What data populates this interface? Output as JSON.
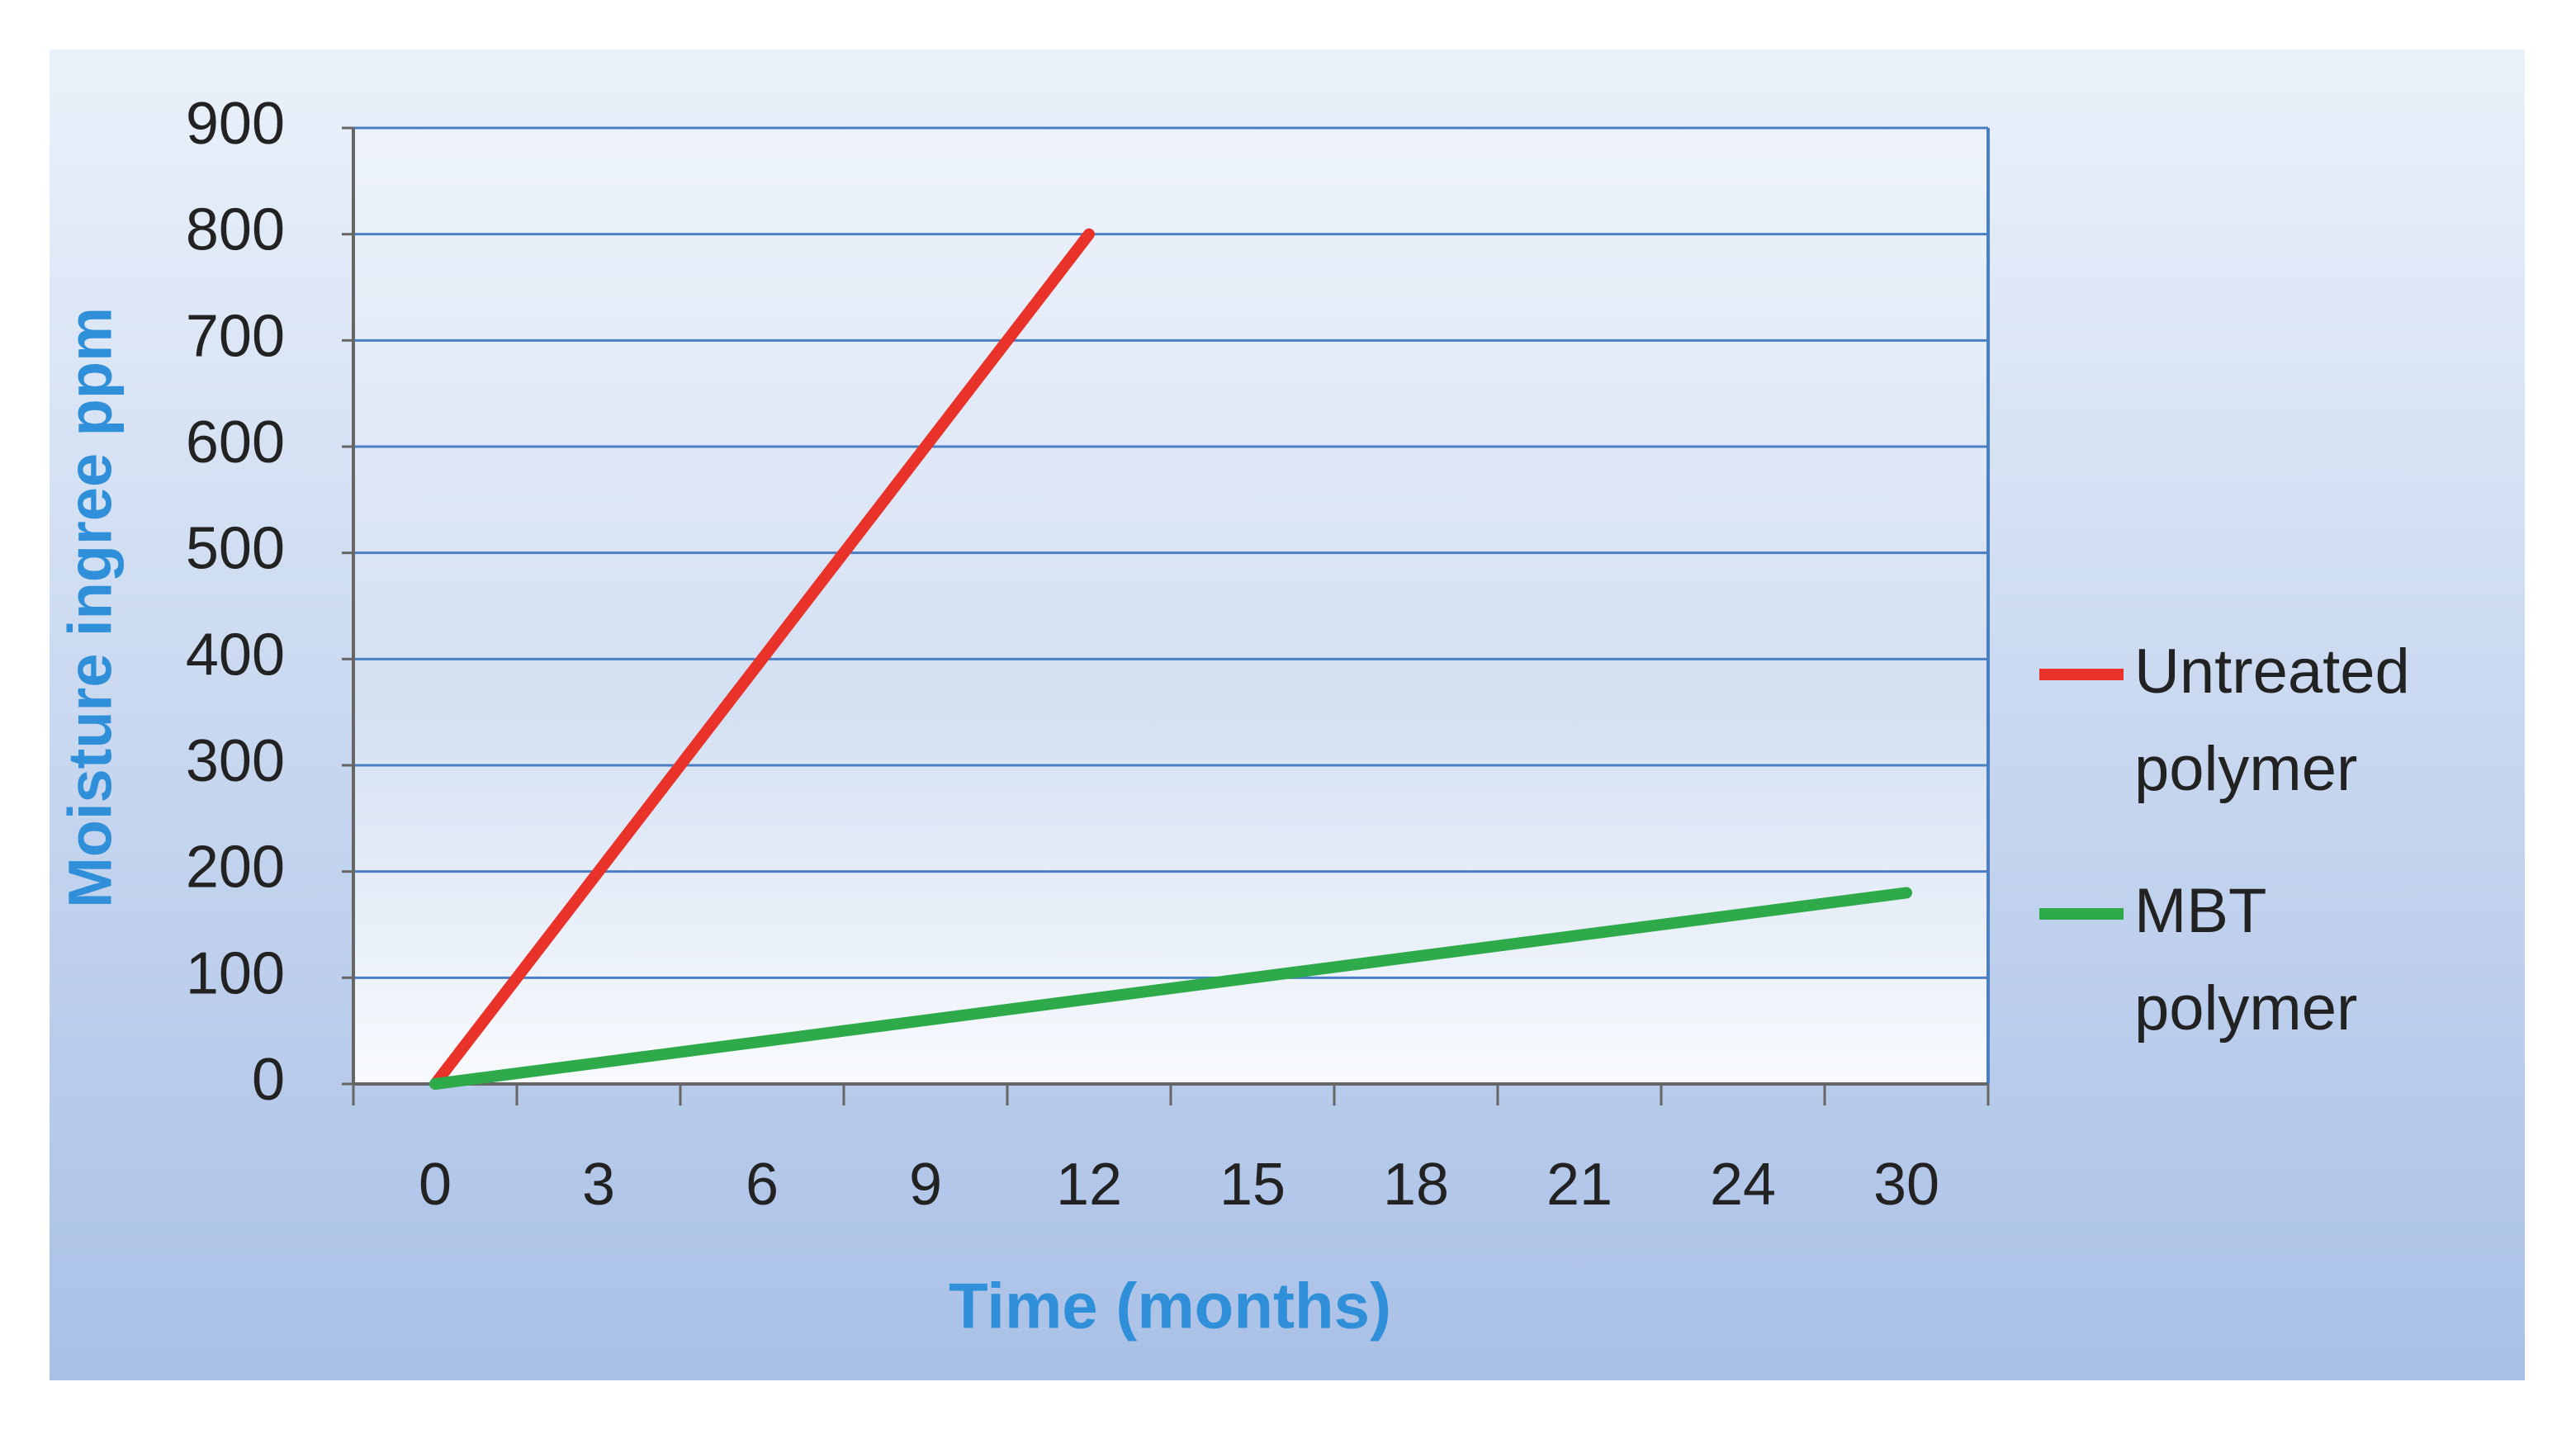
{
  "chart_data": {
    "type": "line",
    "x_label": "Time (months)",
    "y_label": "Moisture ingree ppm",
    "categories": [
      "0",
      "3",
      "6",
      "9",
      "12",
      "15",
      "18",
      "21",
      "24",
      "30"
    ],
    "series": [
      {
        "name": "Untreated polymer",
        "color": "#e8322a",
        "values": [
          0,
          200,
          400,
          600,
          800,
          null,
          null,
          null,
          null,
          null
        ]
      },
      {
        "name": "MBT polymer",
        "color": "#2faa4a",
        "values": [
          0,
          20,
          40,
          60,
          80,
          100,
          120,
          140,
          160,
          180
        ]
      }
    ],
    "ylim": [
      0,
      900
    ],
    "yticks": [
      0,
      100,
      200,
      300,
      400,
      500,
      600,
      700,
      800,
      900
    ],
    "grid": true,
    "legend": "right"
  }
}
